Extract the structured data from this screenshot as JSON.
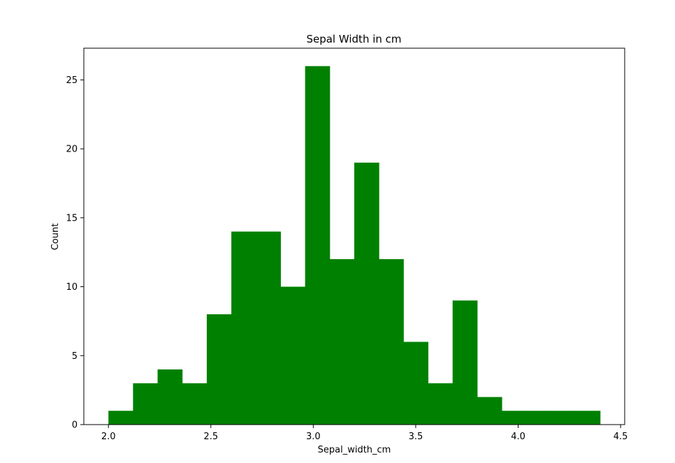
{
  "chart_data": {
    "type": "bar",
    "title": "Sepal Width in cm",
    "xlabel": "Sepal_width_cm",
    "ylabel": "Count",
    "bar_color": "#008000",
    "bin_start": 2.0,
    "bin_end": 4.4,
    "bin_width": 0.12,
    "counts": [
      1,
      3,
      4,
      3,
      8,
      14,
      14,
      10,
      26,
      12,
      19,
      12,
      6,
      3,
      9,
      2,
      1,
      1,
      1,
      1
    ],
    "xlim": [
      1.88,
      4.52
    ],
    "ylim": [
      0,
      27.3
    ],
    "x_ticks": [
      "2.0",
      "2.5",
      "3.0",
      "3.5",
      "4.0",
      "4.5"
    ],
    "y_ticks": [
      "0",
      "5",
      "10",
      "15",
      "20",
      "25"
    ],
    "grid": false,
    "legend": "none"
  }
}
